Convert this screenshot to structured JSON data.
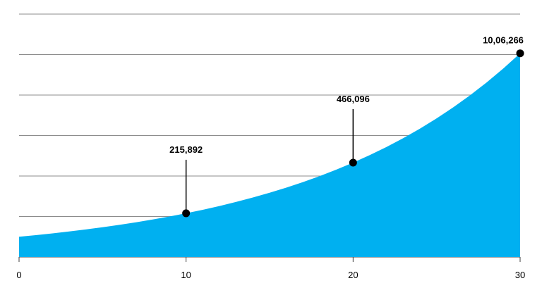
{
  "chart_data": {
    "type": "area",
    "x": [
      0,
      1,
      2,
      3,
      4,
      5,
      6,
      7,
      8,
      9,
      10,
      11,
      12,
      13,
      14,
      15,
      16,
      17,
      18,
      19,
      20,
      21,
      22,
      23,
      24,
      25,
      26,
      27,
      28,
      29,
      30
    ],
    "values": [
      100000,
      108000,
      116640,
      125971,
      136049,
      146933,
      158687,
      171382,
      185093,
      199900,
      215892,
      233164,
      251817,
      271962,
      293719,
      317217,
      342594,
      370002,
      399602,
      431570,
      466096,
      503383,
      543654,
      587146,
      634118,
      684848,
      739635,
      798806,
      862711,
      931727,
      1006266
    ],
    "value_labels": [
      null,
      null,
      null,
      null,
      null,
      null,
      null,
      null,
      null,
      null,
      "215,892",
      null,
      null,
      null,
      null,
      null,
      null,
      null,
      null,
      null,
      "466,096",
      null,
      null,
      null,
      null,
      null,
      null,
      null,
      null,
      null,
      "10,06,266"
    ],
    "color": "#00b0f0",
    "xlim": [
      0,
      30
    ],
    "xticks": [
      0,
      10,
      20,
      30
    ],
    "ylim": [
      0,
      1200000
    ],
    "yticks": [
      0,
      200000,
      400000,
      600000,
      800000,
      1000000,
      1200000
    ],
    "grid": true
  }
}
